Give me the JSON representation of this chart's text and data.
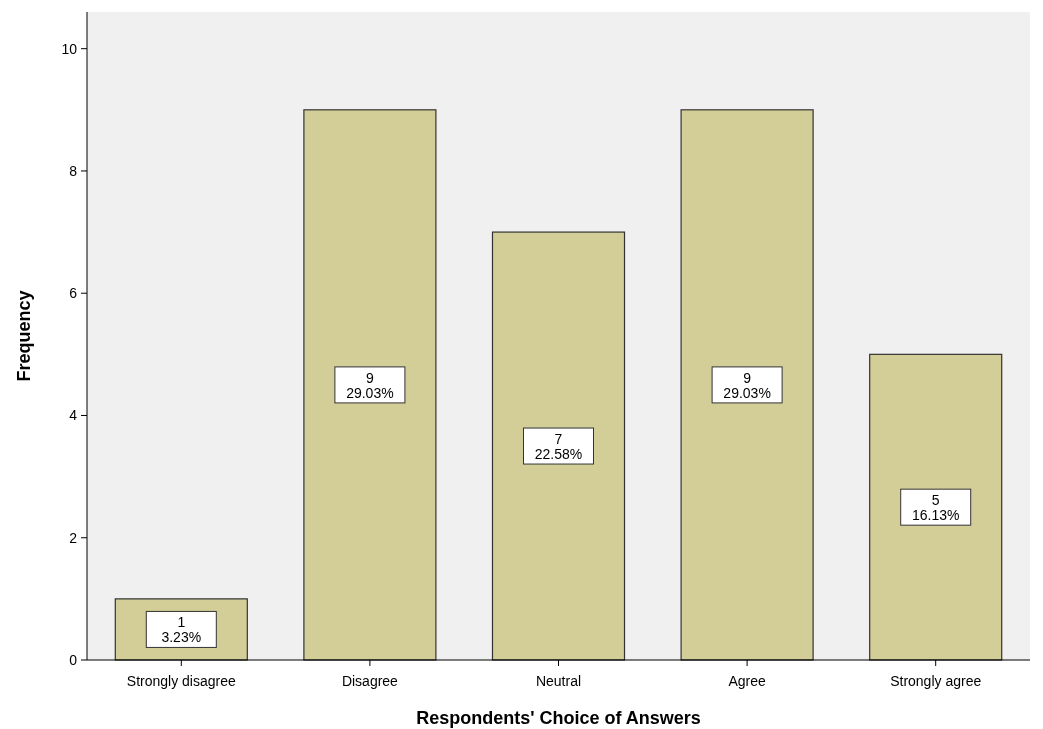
{
  "chart_data": {
    "type": "bar",
    "xlabel": "Respondents' Choice of Answers",
    "ylabel": "Frequency",
    "categories": [
      "Strongly disagree",
      "Disagree",
      "Neutral",
      "Agree",
      "Strongly agree"
    ],
    "values": [
      1,
      9,
      7,
      9,
      5
    ],
    "value_labels": [
      "1\n3.23%",
      "9\n29.03%",
      "7\n22.58%",
      "9\n29.03%",
      "5\n16.13%"
    ],
    "color": "#d3ce97",
    "ylim": [
      0,
      10.6
    ],
    "yticks": [
      0,
      2,
      4,
      6,
      8,
      10
    ],
    "grid": false
  }
}
